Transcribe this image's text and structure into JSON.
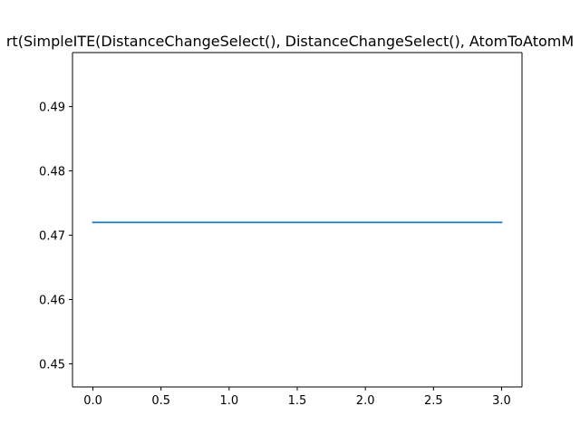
{
  "chart_data": {
    "type": "line",
    "title": "rt(SimpleITE(DistanceChangeSelect(), DistanceChangeSelect(), AtomToAtomM",
    "xlabel": "",
    "ylabel": "",
    "xlim": [
      -0.15,
      3.15
    ],
    "ylim": [
      0.4464,
      0.4984
    ],
    "x_ticks": [
      0.0,
      0.5,
      1.0,
      1.5,
      2.0,
      2.5,
      3.0
    ],
    "x_tick_labels": [
      "0.0",
      "0.5",
      "1.0",
      "1.5",
      "2.0",
      "2.5",
      "3.0"
    ],
    "y_ticks": [
      0.45,
      0.46,
      0.47,
      0.48,
      0.49
    ],
    "y_tick_labels": [
      "0.45",
      "0.46",
      "0.47",
      "0.48",
      "0.49"
    ],
    "grid": false,
    "series": [
      {
        "color": "#1f77b4",
        "x": [
          0,
          1,
          2,
          3
        ],
        "y": [
          0.472,
          0.472,
          0.472,
          0.472
        ]
      }
    ]
  }
}
